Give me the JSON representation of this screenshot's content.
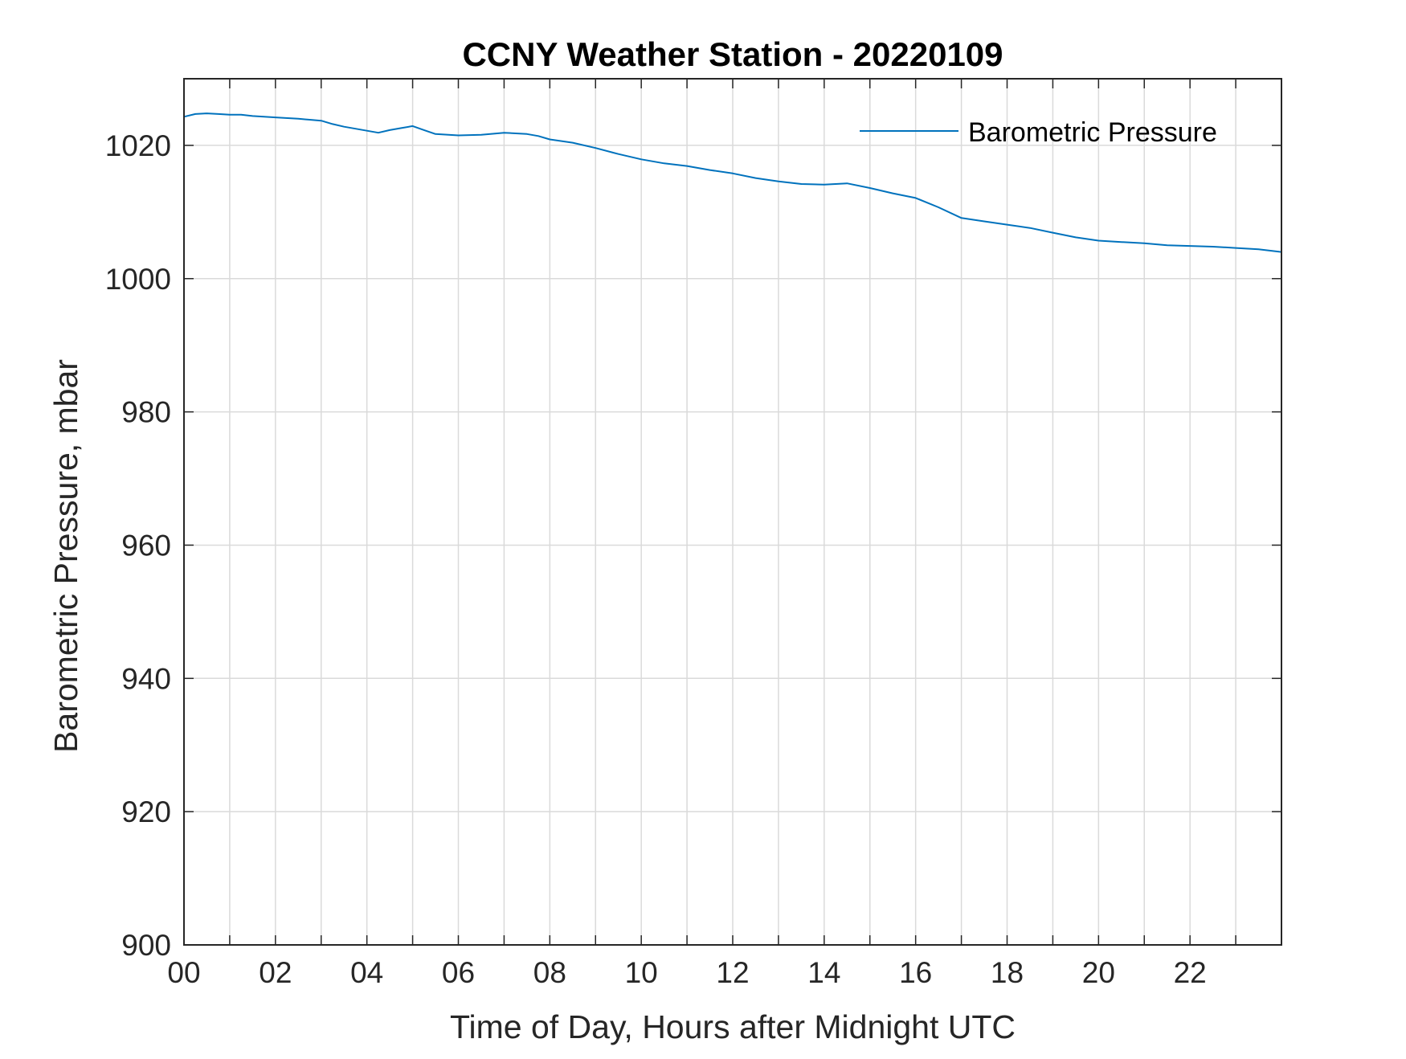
{
  "chart_data": {
    "type": "line",
    "title": "CCNY Weather Station - 20220109",
    "xlabel": "Time of Day, Hours after Midnight UTC",
    "ylabel": "Barometric Pressure, mbar",
    "xlim": [
      0,
      24
    ],
    "ylim": [
      900,
      1030
    ],
    "x_ticks": [
      0,
      2,
      4,
      6,
      8,
      10,
      12,
      14,
      16,
      18,
      20,
      22
    ],
    "x_tick_labels": [
      "00",
      "02",
      "04",
      "06",
      "08",
      "10",
      "12",
      "14",
      "16",
      "18",
      "20",
      "22"
    ],
    "x_grid": [
      0,
      1,
      2,
      3,
      4,
      5,
      6,
      7,
      8,
      9,
      10,
      11,
      12,
      13,
      14,
      15,
      16,
      17,
      18,
      19,
      20,
      21,
      22,
      23
    ],
    "y_ticks": [
      900,
      920,
      940,
      960,
      980,
      1000,
      1020
    ],
    "y_tick_labels": [
      "900",
      "920",
      "940",
      "960",
      "980",
      "1000",
      "1020"
    ],
    "grid": true,
    "legend_position": "top-right",
    "series": [
      {
        "name": "Barometric Pressure",
        "color": "#0072BD",
        "x": [
          0,
          0.25,
          0.5,
          0.75,
          1.0,
          1.25,
          1.5,
          2.0,
          2.5,
          3.0,
          3.25,
          3.5,
          4.0,
          4.25,
          4.5,
          4.75,
          5.0,
          5.25,
          5.5,
          6.0,
          6.5,
          7.0,
          7.5,
          7.75,
          8.0,
          8.5,
          9.0,
          9.5,
          10.0,
          10.5,
          11.0,
          11.5,
          12.0,
          12.5,
          13.0,
          13.5,
          14.0,
          14.5,
          15.0,
          15.5,
          16.0,
          16.5,
          17.0,
          17.5,
          18.0,
          18.5,
          19.0,
          19.5,
          20.0,
          20.5,
          21.0,
          21.5,
          22.0,
          22.5,
          23.0,
          23.5,
          24.0
        ],
        "values": [
          1024.3,
          1024.7,
          1024.8,
          1024.7,
          1024.6,
          1024.6,
          1024.4,
          1024.2,
          1024.0,
          1023.7,
          1023.2,
          1022.8,
          1022.2,
          1021.9,
          1022.3,
          1022.6,
          1022.9,
          1022.3,
          1021.7,
          1021.5,
          1021.6,
          1021.9,
          1021.7,
          1021.4,
          1020.9,
          1020.4,
          1019.6,
          1018.7,
          1017.9,
          1017.3,
          1016.9,
          1016.3,
          1015.8,
          1015.1,
          1014.6,
          1014.2,
          1014.1,
          1014.3,
          1013.6,
          1012.8,
          1012.1,
          1010.7,
          1009.1,
          1008.6,
          1008.1,
          1007.6,
          1006.9,
          1006.2,
          1005.7,
          1005.5,
          1005.3,
          1005.0,
          1004.9,
          1004.8,
          1004.6,
          1004.4,
          1004.0
        ]
      }
    ]
  }
}
